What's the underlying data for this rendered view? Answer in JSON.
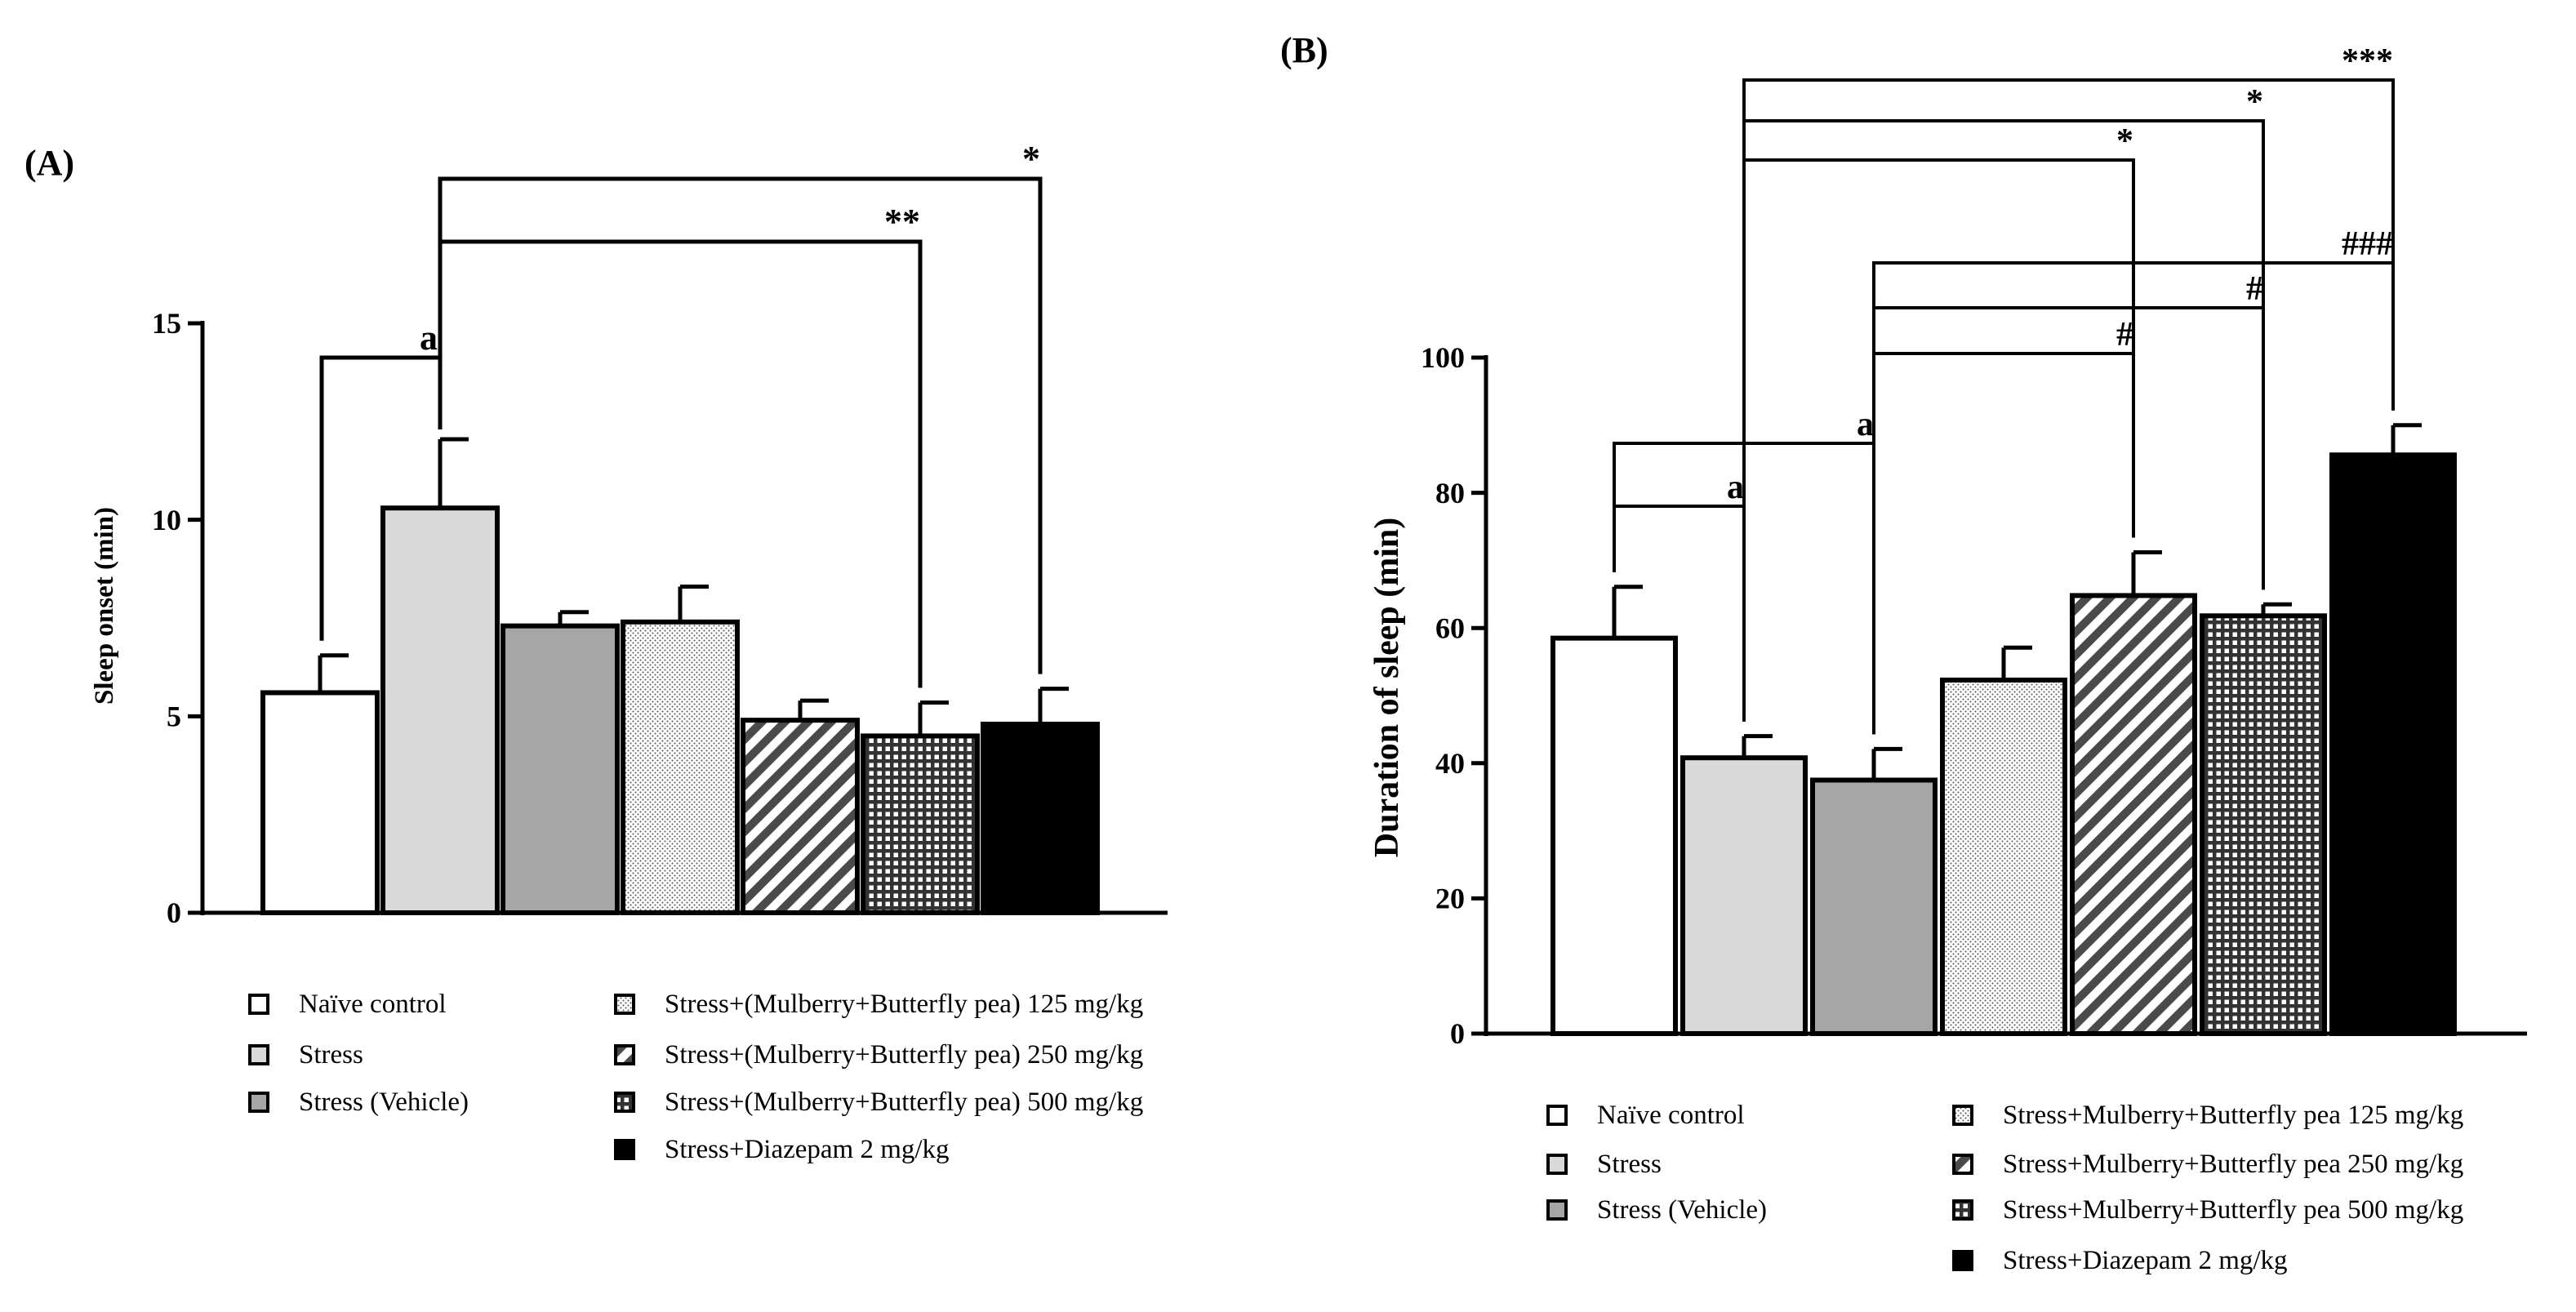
{
  "chart_data": [
    {
      "panel_label": "(A)",
      "type": "bar",
      "ylabel": "Sleep onset (min)",
      "xlabel": "",
      "ylim": [
        0,
        15
      ],
      "yticks": [
        0,
        5,
        10,
        15
      ],
      "ytick_labels": [
        "0",
        "5",
        "10",
        "15"
      ],
      "categories": [
        "Naïve control",
        "Stress",
        "Stress (Vehicle)",
        "Stress+(Mulberry+Butterfly pea) 125 mg/kg",
        "Stress+(Mulberry+Butterfly pea) 250 mg/kg",
        "Stress+(Mulberry+Butterfly pea) 500 mg/kg",
        "Stress+Diazepam 2 mg/kg"
      ],
      "values": [
        5.6,
        10.3,
        7.3,
        7.4,
        4.9,
        4.5,
        4.8
      ],
      "errors": [
        0.95,
        1.75,
        0.35,
        0.9,
        0.5,
        0.85,
        0.9
      ],
      "patterns": [
        "white",
        "lightgray",
        "gray",
        "dots",
        "diagonal",
        "grid",
        "black"
      ],
      "legend": {
        "col1": [
          {
            "label": "Naïve control",
            "pattern": "white"
          },
          {
            "label": "Stress",
            "pattern": "lightgray"
          },
          {
            "label": "Stress (Vehicle)",
            "pattern": "gray"
          }
        ],
        "col2": [
          {
            "label": "Stress+(Mulberry+Butterfly pea) 125 mg/kg",
            "pattern": "dots"
          },
          {
            "label": "Stress+(Mulberry+Butterfly pea) 250 mg/kg",
            "pattern": "diagonal"
          },
          {
            "label": "Stress+(Mulberry+Butterfly pea) 500 mg/kg",
            "pattern": "grid"
          },
          {
            "label": "Stress+Diazepam 2 mg/kg",
            "pattern": "black"
          }
        ]
      },
      "annotations": [
        {
          "from": 0,
          "to": 1,
          "label": "a"
        },
        {
          "from": 1,
          "to": 5,
          "label": "**"
        },
        {
          "from": 1,
          "to": 6,
          "label": "*"
        }
      ]
    },
    {
      "panel_label": "(B)",
      "type": "bar",
      "ylabel": "Duration of sleep (min)",
      "xlabel": "",
      "ylim": [
        0,
        100
      ],
      "yticks": [
        0,
        20,
        40,
        60,
        80,
        100
      ],
      "ytick_labels": [
        "0",
        "20",
        "40",
        "60",
        "80",
        "100"
      ],
      "categories": [
        "Naïve control",
        "Stress",
        "Stress (Vehicle)",
        "Stress+Mulberry+Butterfly pea 125 mg/kg",
        "Stress+Mulberry+Butterfly pea 250 mg/kg",
        "Stress+Mulberry+Butterfly pea 500 mg/kg",
        "Stress+Diazepam 2 mg/kg"
      ],
      "values": [
        58.5,
        40.8,
        37.5,
        52.3,
        64.8,
        61.8,
        85.6
      ],
      "errors": [
        7.6,
        3.2,
        4.6,
        4.8,
        6.4,
        1.7,
        4.4
      ],
      "patterns": [
        "white",
        "lightgray",
        "gray",
        "dots",
        "diagonal",
        "grid",
        "black"
      ],
      "legend": {
        "col1": [
          {
            "label": "Naïve control",
            "pattern": "white"
          },
          {
            "label": "Stress",
            "pattern": "lightgray"
          },
          {
            "label": "Stress (Vehicle)",
            "pattern": "gray"
          }
        ],
        "col2": [
          {
            "label": "Stress+Mulberry+Butterfly pea 125 mg/kg",
            "pattern": "dots"
          },
          {
            "label": "Stress+Mulberry+Butterfly pea 250 mg/kg",
            "pattern": "diagonal"
          },
          {
            "label": "Stress+Mulberry+Butterfly pea 500 mg/kg",
            "pattern": "grid"
          },
          {
            "label": "Stress+Diazepam 2 mg/kg",
            "pattern": "black"
          }
        ]
      },
      "annotations": [
        {
          "from": 0,
          "to": 1,
          "label": "a"
        },
        {
          "from": 0,
          "to": 2,
          "label": "a"
        },
        {
          "from": 2,
          "to": 4,
          "label": "#"
        },
        {
          "from": 2,
          "to": 5,
          "label": "#"
        },
        {
          "from": 2,
          "to": 6,
          "label": "###"
        },
        {
          "from": 1,
          "to": 4,
          "label": "*"
        },
        {
          "from": 1,
          "to": 5,
          "label": "*"
        },
        {
          "from": 1,
          "to": 6,
          "label": "***"
        }
      ]
    }
  ]
}
